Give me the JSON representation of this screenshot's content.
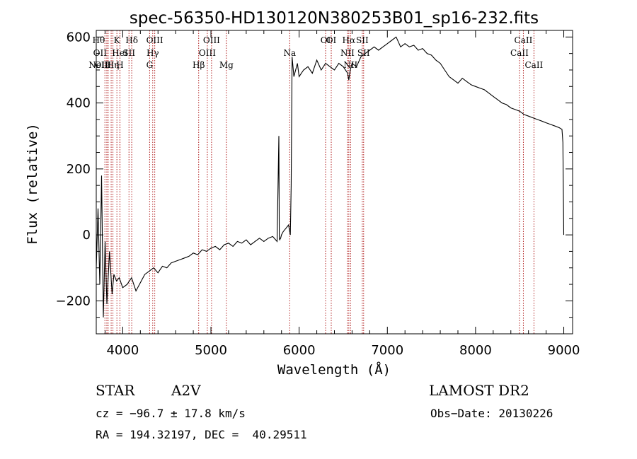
{
  "chart_data": {
    "type": "line",
    "title": "spec-56350-HD130120N380253B01_sp16-232.fits",
    "xlabel": "Wavelength (Å)",
    "ylabel": "Flux (relative)",
    "xlim": [
      3700,
      9100
    ],
    "ylim": [
      -300,
      620
    ],
    "x_ticks": [
      4000,
      5000,
      6000,
      7000,
      8000,
      9000
    ],
    "y_ticks": [
      -200,
      0,
      200,
      400,
      600
    ],
    "grid": false,
    "series": [
      {
        "x": [
          3700,
          3720,
          3740,
          3760,
          3780,
          3800,
          3820,
          3850,
          3880,
          3900,
          3930,
          3960,
          4000,
          4050,
          4100,
          4150,
          4200,
          4250,
          4300,
          4350,
          4400,
          4450,
          4500,
          4550,
          4600,
          4650,
          4700,
          4750,
          4800,
          4850,
          4900,
          4950,
          5000,
          5050,
          5100,
          5150,
          5200,
          5250,
          5300,
          5350,
          5400,
          5450,
          5500,
          5550,
          5600,
          5650,
          5700,
          5750,
          5770,
          5775,
          5780,
          5790,
          5800,
          5820,
          5850,
          5880,
          5900,
          5910,
          5920,
          5940,
          5960,
          5980,
          6000,
          6050,
          6100,
          6150,
          6200,
          6250,
          6300,
          6350,
          6400,
          6450,
          6500,
          6550,
          6563,
          6580,
          6600,
          6650,
          6700,
          6750,
          6800,
          6850,
          6900,
          6950,
          7000,
          7050,
          7100,
          7150,
          7200,
          7250,
          7300,
          7350,
          7400,
          7450,
          7500,
          7550,
          7600,
          7650,
          7700,
          7750,
          7800,
          7850,
          7900,
          7950,
          8000,
          8050,
          8100,
          8150,
          8200,
          8250,
          8300,
          8350,
          8400,
          8450,
          8500,
          8550,
          8600,
          8650,
          8700,
          8750,
          8800,
          8850,
          8900,
          8950,
          8980,
          8990,
          9000
        ],
        "y": [
          -100,
          80,
          -150,
          180,
          -250,
          -20,
          -210,
          -50,
          -180,
          -120,
          -140,
          -130,
          -160,
          -150,
          -130,
          -170,
          -145,
          -120,
          -110,
          -100,
          -115,
          -95,
          -100,
          -85,
          -80,
          -75,
          -70,
          -65,
          -55,
          -60,
          -45,
          -50,
          -40,
          -35,
          -45,
          -30,
          -25,
          -35,
          -20,
          -25,
          -15,
          -30,
          -20,
          -10,
          -20,
          -10,
          -5,
          -20,
          300,
          -10,
          -15,
          -10,
          0,
          10,
          20,
          30,
          0,
          150,
          540,
          480,
          500,
          520,
          480,
          500,
          510,
          490,
          530,
          500,
          520,
          510,
          500,
          520,
          510,
          490,
          470,
          500,
          520,
          510,
          540,
          550,
          560,
          570,
          560,
          570,
          580,
          590,
          600,
          570,
          580,
          570,
          575,
          560,
          565,
          550,
          545,
          530,
          520,
          500,
          480,
          470,
          460,
          475,
          465,
          455,
          450,
          445,
          440,
          430,
          420,
          410,
          400,
          395,
          385,
          380,
          375,
          365,
          360,
          355,
          350,
          345,
          340,
          335,
          330,
          325,
          320,
          280,
          0
        ]
      }
    ],
    "lines": [
      {
        "x": 3798,
        "label": "Hθ",
        "row": 1,
        "align": "end"
      },
      {
        "x": 3820,
        "label": "OII",
        "row": 2,
        "align": "end"
      },
      {
        "x": 3835,
        "label": "OII",
        "row": 3,
        "align": "end"
      },
      {
        "x": 3869,
        "label": "NeIII",
        "row": 3,
        "align": "end"
      },
      {
        "x": 3889,
        "label": "Hη",
        "row": 3,
        "align": "middle"
      },
      {
        "x": 3934,
        "label": "K",
        "row": 1,
        "align": "middle"
      },
      {
        "x": 3969,
        "label": "H",
        "row": 3,
        "align": "middle"
      },
      {
        "x": 3968,
        "label": "HeI",
        "row": 2,
        "align": "middle"
      },
      {
        "x": 4071,
        "label": "SII",
        "row": 2,
        "align": "middle"
      },
      {
        "x": 4102,
        "label": "Hδ",
        "row": 1,
        "align": "middle"
      },
      {
        "x": 4305,
        "label": "G",
        "row": 3,
        "align": "middle"
      },
      {
        "x": 4340,
        "label": "Hγ",
        "row": 2,
        "align": "middle"
      },
      {
        "x": 4363,
        "label": "OIII",
        "row": 1,
        "align": "middle"
      },
      {
        "x": 4861,
        "label": "Hβ",
        "row": 3,
        "align": "middle"
      },
      {
        "x": 4959,
        "label": "OIII",
        "row": 2,
        "align": "middle"
      },
      {
        "x": 5007,
        "label": "OIII",
        "row": 1,
        "align": "middle"
      },
      {
        "x": 5175,
        "label": "Mg",
        "row": 3,
        "align": "middle"
      },
      {
        "x": 5893,
        "label": "Na",
        "row": 2,
        "align": "middle"
      },
      {
        "x": 6300,
        "label": "OI",
        "row": 1,
        "align": "middle"
      },
      {
        "x": 6364,
        "label": "OI",
        "row": 1,
        "align": "middle"
      },
      {
        "x": 6548,
        "label": "NII",
        "row": 2,
        "align": "middle"
      },
      {
        "x": 6563,
        "label": "Hα",
        "row": 1,
        "align": "middle"
      },
      {
        "x": 6583,
        "label": "NII",
        "row": 3,
        "align": "middle"
      },
      {
        "x": 6716,
        "label": "SII",
        "row": 1,
        "align": "middle"
      },
      {
        "x": 6731,
        "label": "SII",
        "row": 2,
        "align": "middle"
      },
      {
        "x": 8498,
        "label": "CaII",
        "row": 2,
        "align": "middle"
      },
      {
        "x": 8542,
        "label": "CaII",
        "row": 1,
        "align": "middle"
      },
      {
        "x": 8662,
        "label": "CaII",
        "row": 3,
        "align": "middle"
      }
    ]
  },
  "info": {
    "object_type": "STAR",
    "subclass": "A2V",
    "survey": "LAMOST DR2",
    "cz": "cz = −96.7 ± 17.8 km/s",
    "obs_date": "Obs−Date: 20130226",
    "coords": "RA = 194.32197, DEC =  40.29511"
  }
}
